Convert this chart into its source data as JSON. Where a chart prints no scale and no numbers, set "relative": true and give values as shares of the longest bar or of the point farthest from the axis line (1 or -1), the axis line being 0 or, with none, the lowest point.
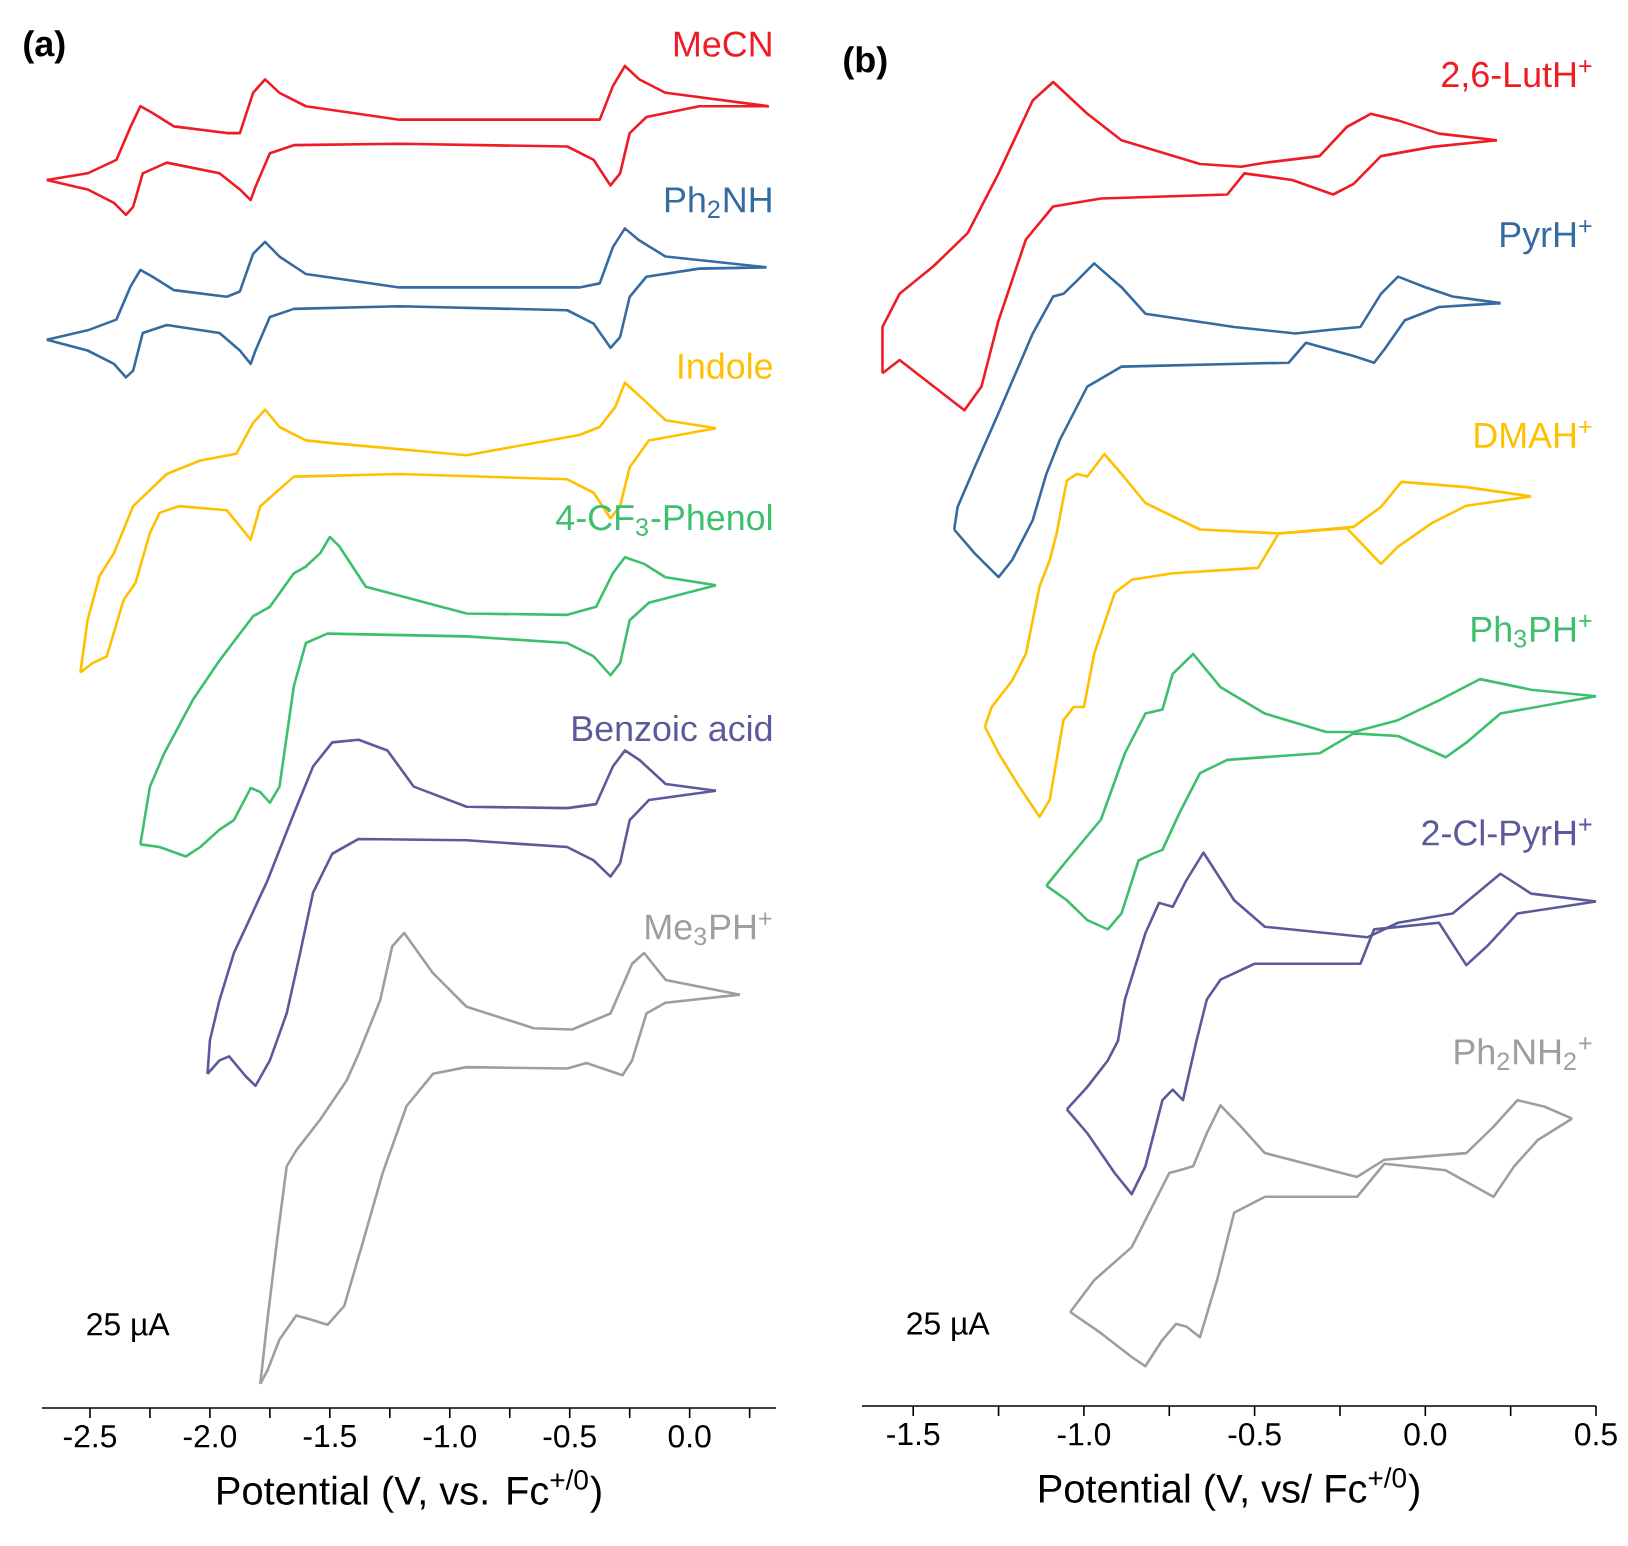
{
  "chart_data": [
    {
      "type": "line",
      "title": "(a)",
      "xlabel": "Potential (V, vs. Fc$^{+/0}$)",
      "relative": true,
      "annotations": [
        "25 µA"
      ],
      "xlim": [
        -2.7,
        0.36
      ],
      "xticks": [
        {
          "value": -2.5,
          "label": "-2.5"
        },
        {
          "value": -2.25,
          "label": null
        },
        {
          "value": -2.0,
          "label": "-2.0"
        },
        {
          "value": -1.75,
          "label": null
        },
        {
          "value": -1.5,
          "label": "-1.5"
        },
        {
          "value": -1.25,
          "label": null
        },
        {
          "value": -1.0,
          "label": "-1.0"
        },
        {
          "value": -0.75,
          "label": null
        },
        {
          "value": -0.5,
          "label": "-0.5"
        },
        {
          "value": -0.25,
          "label": null
        },
        {
          "value": 0.0,
          "label": "0.0"
        },
        {
          "value": 0.25,
          "label": null
        }
      ],
      "series": [
        {
          "name": "MeCN",
          "color": "#ee1c25",
          "x": [
            -2.68,
            -2.51,
            -2.39,
            -2.33,
            -2.29,
            -2.24,
            -2.15,
            -1.93,
            -1.875,
            -1.82,
            -1.77,
            -1.71,
            -1.6,
            -1.21,
            -0.46,
            -0.375,
            -0.32,
            -0.27,
            -0.21,
            -0.1,
            0.33
          ],
          "values": [
            0.915,
            0.92,
            0.93,
            0.955,
            0.97,
            0.965,
            0.955,
            0.95,
            0.95,
            0.98,
            0.99,
            0.98,
            0.97,
            0.96,
            0.96,
            0.96,
            0.985,
            1.0,
            0.99,
            0.98,
            0.97
          ]
        },
        {
          "color": "#ee1c25",
          "x": [
            -2.68,
            -2.51,
            -2.4,
            -2.35,
            -2.32,
            -2.28,
            -2.18,
            -1.96,
            -1.875,
            -1.83,
            -1.81,
            -1.75,
            -1.65,
            -1.21,
            -0.51,
            -0.4,
            -0.33,
            -0.29,
            -0.25,
            -0.18,
            0.04,
            0.33
          ],
          "values": [
            0.915,
            0.908,
            0.898,
            0.889,
            0.895,
            0.92,
            0.928,
            0.92,
            0.908,
            0.9,
            0.91,
            0.935,
            0.941,
            0.942,
            0.94,
            0.93,
            0.911,
            0.92,
            0.95,
            0.962,
            0.97,
            0.97
          ]
        },
        {
          "name": "Ph$_{2}$NH",
          "color": "#356ba0",
          "x": [
            -2.68,
            -2.51,
            -2.39,
            -2.33,
            -2.29,
            -2.24,
            -2.15,
            -1.93,
            -1.875,
            -1.82,
            -1.77,
            -1.71,
            -1.6,
            -1.21,
            -0.46,
            -0.375,
            -0.32,
            -0.27,
            -0.21,
            -0.1,
            0.32
          ],
          "values": [
            0.796,
            0.803,
            0.811,
            0.836,
            0.848,
            0.843,
            0.833,
            0.828,
            0.832,
            0.86,
            0.869,
            0.858,
            0.845,
            0.835,
            0.835,
            0.838,
            0.865,
            0.879,
            0.87,
            0.858,
            0.85
          ]
        },
        {
          "color": "#356ba0",
          "x": [
            -2.68,
            -2.51,
            -2.4,
            -2.35,
            -2.32,
            -2.28,
            -2.18,
            -1.96,
            -1.875,
            -1.83,
            -1.81,
            -1.75,
            -1.65,
            -1.21,
            -0.51,
            -0.4,
            -0.33,
            -0.29,
            -0.25,
            -0.18,
            0.04,
            0.32
          ],
          "values": [
            0.796,
            0.788,
            0.778,
            0.768,
            0.773,
            0.801,
            0.807,
            0.801,
            0.788,
            0.778,
            0.788,
            0.813,
            0.819,
            0.821,
            0.818,
            0.808,
            0.79,
            0.798,
            0.828,
            0.843,
            0.849,
            0.85
          ]
        },
        {
          "name": "Indole",
          "color": "#ffc000",
          "x": [
            -2.54,
            -2.51,
            -2.46,
            -2.4,
            -2.32,
            -2.18,
            -2.04,
            -1.89,
            -1.82,
            -1.77,
            -1.71,
            -1.6,
            -1.49,
            -0.93,
            -0.46,
            -0.375,
            -0.31,
            -0.27,
            -0.19,
            -0.1,
            0.11
          ],
          "values": [
            0.548,
            0.587,
            0.62,
            0.637,
            0.672,
            0.696,
            0.706,
            0.711,
            0.734,
            0.744,
            0.731,
            0.721,
            0.719,
            0.71,
            0.725,
            0.731,
            0.746,
            0.764,
            0.751,
            0.736,
            0.73
          ]
        },
        {
          "color": "#ffc000",
          "x": [
            -2.54,
            -2.49,
            -2.43,
            -2.36,
            -2.31,
            -2.25,
            -2.21,
            -2.13,
            -1.93,
            -1.875,
            -1.83,
            -1.79,
            -1.65,
            -1.21,
            -0.51,
            -0.4,
            -0.33,
            -0.29,
            -0.25,
            -0.17,
            0.11
          ],
          "values": [
            0.548,
            0.555,
            0.56,
            0.602,
            0.615,
            0.652,
            0.667,
            0.672,
            0.669,
            0.657,
            0.647,
            0.672,
            0.694,
            0.696,
            0.692,
            0.682,
            0.663,
            0.672,
            0.701,
            0.721,
            0.73
          ]
        },
        {
          "name": "4-CF$_{3}$-Phenol",
          "color": "#3dbf6e",
          "x": [
            -2.29,
            -2.25,
            -2.19,
            -2.07,
            -1.96,
            -1.82,
            -1.75,
            -1.65,
            -1.6,
            -1.54,
            -1.5,
            -1.46,
            -1.35,
            -0.93,
            -0.51,
            -0.39,
            -0.32,
            -0.27,
            -0.19,
            -0.1,
            0.11
          ],
          "values": [
            0.42,
            0.463,
            0.488,
            0.528,
            0.557,
            0.59,
            0.597,
            0.622,
            0.627,
            0.637,
            0.649,
            0.642,
            0.612,
            0.592,
            0.591,
            0.597,
            0.622,
            0.634,
            0.629,
            0.619,
            0.613
          ]
        },
        {
          "color": "#3dbf6e",
          "x": [
            -2.29,
            -2.21,
            -2.1,
            -2.04,
            -1.96,
            -1.9,
            -1.83,
            -1.79,
            -1.75,
            -1.71,
            -1.65,
            -1.6,
            -1.51,
            -0.93,
            -0.51,
            -0.4,
            -0.33,
            -0.29,
            -0.25,
            -0.17,
            0.11
          ],
          "values": [
            0.42,
            0.418,
            0.411,
            0.418,
            0.431,
            0.438,
            0.462,
            0.459,
            0.451,
            0.463,
            0.538,
            0.57,
            0.577,
            0.575,
            0.57,
            0.56,
            0.546,
            0.555,
            0.587,
            0.6,
            0.613
          ]
        },
        {
          "name": "Benzoic acid",
          "color": "#5b5b9b",
          "x": [
            -2.01,
            -2.0,
            -1.96,
            -1.9,
            -1.76,
            -1.65,
            -1.57,
            -1.49,
            -1.38,
            -1.26,
            -1.15,
            -0.93,
            -0.51,
            -0.39,
            -0.32,
            -0.27,
            -0.21,
            -0.1,
            0.11
          ],
          "values": [
            0.249,
            0.274,
            0.304,
            0.339,
            0.393,
            0.443,
            0.478,
            0.496,
            0.498,
            0.49,
            0.463,
            0.448,
            0.447,
            0.45,
            0.478,
            0.49,
            0.483,
            0.465,
            0.46
          ]
        },
        {
          "color": "#5b5b9b",
          "x": [
            -2.01,
            -1.96,
            -1.92,
            -1.85,
            -1.81,
            -1.75,
            -1.68,
            -1.63,
            -1.57,
            -1.49,
            -1.38,
            -0.93,
            -0.51,
            -0.4,
            -0.33,
            -0.29,
            -0.25,
            -0.17,
            0.11
          ],
          "values": [
            0.249,
            0.259,
            0.262,
            0.247,
            0.24,
            0.259,
            0.294,
            0.334,
            0.384,
            0.413,
            0.424,
            0.423,
            0.418,
            0.408,
            0.396,
            0.406,
            0.438,
            0.453,
            0.46
          ]
        },
        {
          "name": "Me$_{3}$PH$^{+}$",
          "color": "#9e9e9e",
          "x": [
            -1.79,
            -1.76,
            -1.72,
            -1.68,
            -1.64,
            -1.54,
            -1.43,
            -1.38,
            -1.29,
            -1.24,
            -1.19,
            -1.07,
            -0.93,
            -0.65,
            -0.49,
            -0.33,
            -0.24,
            -0.19,
            -0.1,
            0.21
          ],
          "values": [
            0.018,
            0.066,
            0.125,
            0.18,
            0.192,
            0.215,
            0.244,
            0.264,
            0.304,
            0.344,
            0.354,
            0.324,
            0.299,
            0.283,
            0.282,
            0.294,
            0.331,
            0.339,
            0.319,
            0.308
          ]
        },
        {
          "color": "#9e9e9e",
          "x": [
            -1.79,
            -1.76,
            -1.71,
            -1.64,
            -1.58,
            -1.51,
            -1.44,
            -1.36,
            -1.28,
            -1.18,
            -1.07,
            -0.93,
            -0.51,
            -0.43,
            -0.28,
            -0.24,
            -0.18,
            -0.1,
            0.21
          ],
          "values": [
            0.018,
            0.028,
            0.051,
            0.069,
            0.066,
            0.062,
            0.076,
            0.125,
            0.175,
            0.225,
            0.249,
            0.254,
            0.253,
            0.257,
            0.248,
            0.259,
            0.294,
            0.302,
            0.308
          ]
        }
      ]
    },
    {
      "type": "line",
      "title": "(b)",
      "xlabel": "Potential (V, vs/ Fc$^{+/0}$)",
      "relative": true,
      "annotations": [
        "25 µA"
      ],
      "xlim": [
        -1.65,
        0.5
      ],
      "xticks": [
        {
          "value": -1.5,
          "label": "-1.5"
        },
        {
          "value": -1.25,
          "label": null
        },
        {
          "value": -1.0,
          "label": "-1.0"
        },
        {
          "value": -0.75,
          "label": null
        },
        {
          "value": -0.5,
          "label": "-0.5"
        },
        {
          "value": -0.25,
          "label": null
        },
        {
          "value": 0.0,
          "label": "0.0"
        },
        {
          "value": 0.25,
          "label": null
        },
        0.5
      ],
      "series": [
        {
          "name": "2,6-LutH$^{+}$",
          "color": "#ee1c25",
          "x": [
            -1.59,
            -1.59,
            -1.54,
            -1.44,
            -1.34,
            -1.25,
            -1.15,
            -1.09,
            -0.99,
            -0.89,
            -0.66,
            -0.54,
            -0.47,
            -0.31,
            -0.23,
            -0.16,
            -0.08,
            0.04,
            0.21
          ],
          "values": [
            0.78,
            0.815,
            0.84,
            0.861,
            0.886,
            0.931,
            0.986,
            1.0,
            0.976,
            0.956,
            0.938,
            0.936,
            0.939,
            0.944,
            0.966,
            0.976,
            0.971,
            0.961,
            0.956
          ]
        },
        {
          "color": "#ee1c25",
          "x": [
            -1.59,
            -1.54,
            -1.44,
            -1.35,
            -1.3,
            -1.25,
            -1.17,
            -1.09,
            -0.95,
            -0.58,
            -0.53,
            -0.39,
            -0.27,
            -0.21,
            -0.13,
            0.02,
            0.21
          ],
          "values": [
            0.78,
            0.79,
            0.77,
            0.752,
            0.77,
            0.82,
            0.881,
            0.906,
            0.912,
            0.915,
            0.931,
            0.926,
            0.915,
            0.923,
            0.944,
            0.951,
            0.956
          ]
        },
        {
          "name": "PyrH$^{+}$",
          "color": "#356ba0",
          "x": [
            -1.38,
            -1.37,
            -1.32,
            -1.25,
            -1.15,
            -1.09,
            -1.06,
            -1.02,
            -0.97,
            -0.89,
            -0.82,
            -0.56,
            -0.38,
            -0.27,
            -0.19,
            -0.13,
            -0.08,
            0.0,
            0.08,
            0.22
          ],
          "values": [
            0.662,
            0.679,
            0.709,
            0.75,
            0.81,
            0.838,
            0.84,
            0.85,
            0.863,
            0.845,
            0.825,
            0.815,
            0.81,
            0.813,
            0.815,
            0.84,
            0.853,
            0.845,
            0.838,
            0.833
          ]
        },
        {
          "color": "#356ba0",
          "x": [
            -1.38,
            -1.32,
            -1.25,
            -1.21,
            -1.15,
            -1.11,
            -1.07,
            -0.99,
            -0.89,
            -0.4,
            -0.35,
            -0.21,
            -0.15,
            -0.12,
            -0.06,
            0.04,
            0.22
          ],
          "values": [
            0.662,
            0.644,
            0.626,
            0.639,
            0.669,
            0.704,
            0.73,
            0.77,
            0.785,
            0.788,
            0.803,
            0.793,
            0.788,
            0.798,
            0.82,
            0.83,
            0.833
          ]
        },
        {
          "name": "DMAH$^{+}$",
          "color": "#ffc000",
          "x": [
            -1.29,
            -1.27,
            -1.21,
            -1.17,
            -1.13,
            -1.1,
            -1.08,
            -1.05,
            -1.02,
            -0.99,
            -0.94,
            -0.89,
            -0.82,
            -0.66,
            -0.43,
            -0.21,
            -0.13,
            -0.07,
            0.12,
            0.31
          ],
          "values": [
            0.513,
            0.528,
            0.548,
            0.568,
            0.619,
            0.639,
            0.659,
            0.699,
            0.704,
            0.702,
            0.719,
            0.704,
            0.682,
            0.662,
            0.659,
            0.664,
            0.679,
            0.698,
            0.694,
            0.687
          ]
        },
        {
          "color": "#ffc000",
          "x": [
            -1.29,
            -1.25,
            -1.19,
            -1.13,
            -1.1,
            -1.06,
            -1.03,
            -1.0,
            -0.97,
            -0.91,
            -0.86,
            -0.74,
            -0.49,
            -0.43,
            -0.23,
            -0.13,
            -0.08,
            0.02,
            0.12,
            0.31
          ],
          "values": [
            0.513,
            0.493,
            0.468,
            0.445,
            0.458,
            0.518,
            0.528,
            0.528,
            0.568,
            0.614,
            0.624,
            0.629,
            0.633,
            0.659,
            0.663,
            0.636,
            0.649,
            0.667,
            0.68,
            0.687
          ]
        },
        {
          "name": "Ph$_{3}$PH$^{+}$",
          "color": "#3dbf6e",
          "x": [
            -1.11,
            -1.05,
            -0.95,
            -0.88,
            -0.82,
            -0.77,
            -0.74,
            -0.68,
            -0.6,
            -0.47,
            -0.29,
            -0.21,
            -0.08,
            0.04,
            0.16,
            0.31,
            0.5
          ],
          "values": [
            0.393,
            0.412,
            0.443,
            0.493,
            0.523,
            0.526,
            0.553,
            0.568,
            0.543,
            0.523,
            0.509,
            0.509,
            0.518,
            0.533,
            0.549,
            0.541,
            0.536
          ]
        },
        {
          "color": "#3dbf6e",
          "x": [
            -1.11,
            -1.05,
            -0.99,
            -0.93,
            -0.89,
            -0.84,
            -0.8,
            -0.77,
            -0.72,
            -0.66,
            -0.58,
            -0.31,
            -0.21,
            -0.08,
            0.06,
            0.12,
            0.22,
            0.5
          ],
          "values": [
            0.393,
            0.382,
            0.367,
            0.36,
            0.372,
            0.412,
            0.417,
            0.42,
            0.448,
            0.478,
            0.488,
            0.493,
            0.508,
            0.506,
            0.49,
            0.501,
            0.523,
            0.536
          ]
        },
        {
          "name": "2-Cl-PyrH$^{+}$",
          "color": "#5b5b9b",
          "x": [
            -1.05,
            -0.99,
            -0.93,
            -0.9,
            -0.88,
            -0.82,
            -0.78,
            -0.74,
            -0.7,
            -0.65,
            -0.56,
            -0.47,
            -0.17,
            -0.08,
            0.08,
            0.22,
            0.31,
            0.5
          ],
          "values": [
            0.224,
            0.241,
            0.261,
            0.276,
            0.307,
            0.357,
            0.38,
            0.377,
            0.397,
            0.418,
            0.382,
            0.362,
            0.354,
            0.365,
            0.372,
            0.402,
            0.387,
            0.381
          ]
        },
        {
          "color": "#5b5b9b",
          "x": [
            -1.05,
            -0.99,
            -0.91,
            -0.86,
            -0.82,
            -0.77,
            -0.74,
            -0.71,
            -0.67,
            -0.64,
            -0.6,
            -0.5,
            -0.19,
            -0.15,
            0.04,
            0.12,
            0.18,
            0.27,
            0.5
          ],
          "values": [
            0.224,
            0.206,
            0.176,
            0.16,
            0.181,
            0.231,
            0.239,
            0.231,
            0.276,
            0.307,
            0.322,
            0.334,
            0.334,
            0.36,
            0.365,
            0.333,
            0.347,
            0.372,
            0.381
          ]
        },
        {
          "name": "Ph$_{2}$NH$_{2}$$^{+}$",
          "color": "#9e9e9e",
          "x": [
            -1.04,
            -0.97,
            -0.86,
            -0.75,
            -0.72,
            -0.68,
            -0.64,
            -0.6,
            -0.54,
            -0.47,
            -0.2,
            -0.12,
            0.12,
            0.2,
            0.27,
            0.35,
            0.43
          ],
          "values": [
            0.071,
            0.095,
            0.12,
            0.176,
            0.178,
            0.181,
            0.206,
            0.227,
            0.211,
            0.191,
            0.173,
            0.186,
            0.191,
            0.211,
            0.231,
            0.226,
            0.217
          ]
        },
        {
          "color": "#9e9e9e",
          "x": [
            -1.04,
            -0.95,
            -0.86,
            -0.82,
            -0.77,
            -0.73,
            -0.7,
            -0.66,
            -0.61,
            -0.56,
            -0.47,
            -0.2,
            -0.12,
            0.06,
            0.2,
            0.26,
            0.33,
            0.43
          ],
          "values": [
            0.071,
            0.055,
            0.037,
            0.03,
            0.05,
            0.062,
            0.06,
            0.052,
            0.095,
            0.146,
            0.158,
            0.158,
            0.183,
            0.178,
            0.158,
            0.181,
            0.201,
            0.217
          ]
        }
      ]
    }
  ]
}
